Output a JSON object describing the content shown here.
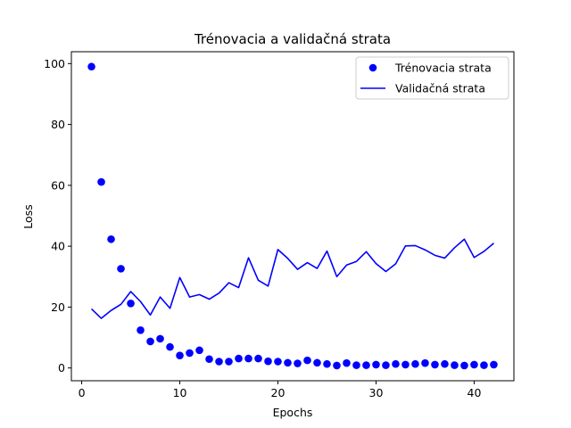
{
  "chart_data": {
    "type": "line",
    "title": "Trénovacia a validačná strata",
    "xlabel": "Epochs",
    "ylabel": "Loss",
    "xlim": [
      -1.05,
      44.05
    ],
    "ylim": [
      -4.2,
      103.9
    ],
    "xticks": [
      0,
      10,
      20,
      30,
      40
    ],
    "yticks": [
      0,
      20,
      40,
      60,
      80,
      100
    ],
    "grid": false,
    "legend_position": "top-right",
    "colors": {
      "series": "#0000ff",
      "axes": "#000000",
      "background": "#ffffff"
    },
    "x": [
      1,
      2,
      3,
      4,
      5,
      6,
      7,
      8,
      9,
      10,
      11,
      12,
      13,
      14,
      15,
      16,
      17,
      18,
      19,
      20,
      21,
      22,
      23,
      24,
      25,
      26,
      27,
      28,
      29,
      30,
      31,
      32,
      33,
      34,
      35,
      36,
      37,
      38,
      39,
      40,
      41,
      42
    ],
    "series": [
      {
        "name": "Trénovacia strata",
        "kind": "scatter",
        "values": [
          99.0,
          61.1,
          42.3,
          32.6,
          21.2,
          12.4,
          8.7,
          9.6,
          6.9,
          4.1,
          4.9,
          5.8,
          2.9,
          2.1,
          2.1,
          3.1,
          3.1,
          3.1,
          2.2,
          2.1,
          1.7,
          1.5,
          2.5,
          1.7,
          1.3,
          0.8,
          1.6,
          0.9,
          0.9,
          1.1,
          0.9,
          1.3,
          1.1,
          1.3,
          1.6,
          1.1,
          1.3,
          0.9,
          0.8,
          1.1,
          0.9,
          1.1
        ]
      },
      {
        "name": "Validačná strata",
        "kind": "line",
        "values": [
          19.4,
          16.3,
          18.9,
          20.9,
          25.1,
          21.8,
          17.4,
          23.3,
          19.6,
          29.7,
          23.3,
          24.1,
          22.6,
          24.6,
          28.0,
          26.4,
          36.2,
          28.8,
          26.9,
          38.9,
          36.0,
          32.4,
          34.6,
          32.7,
          38.4,
          30.0,
          33.8,
          35.0,
          38.2,
          34.3,
          31.7,
          34.2,
          40.1,
          40.2,
          38.8,
          37.0,
          36.1,
          39.5,
          42.3,
          36.3,
          38.3,
          41.0
        ]
      }
    ]
  }
}
